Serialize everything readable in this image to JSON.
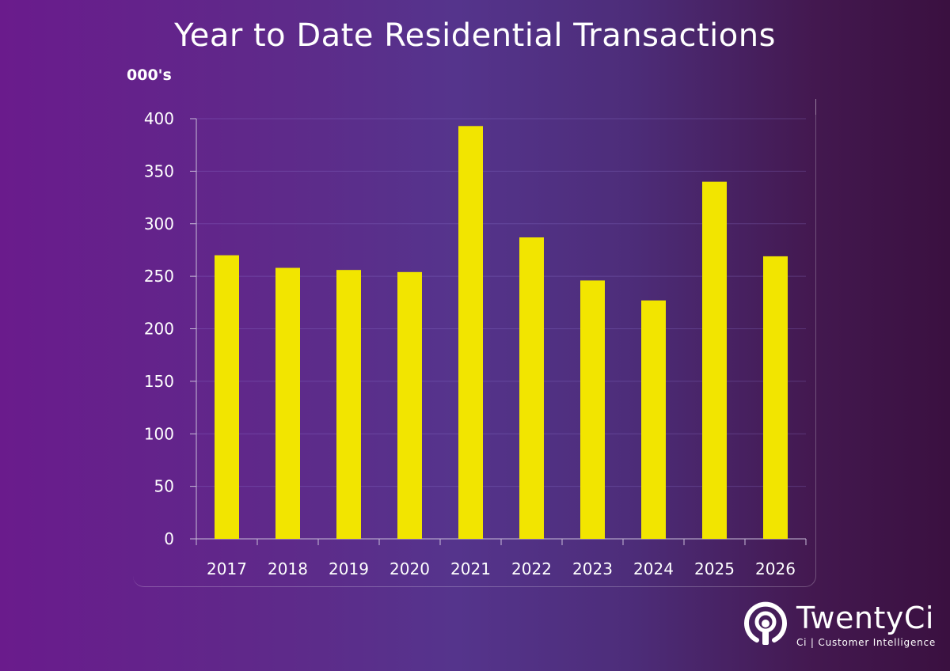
{
  "colors": {
    "bar": "#f2e500",
    "axis": "#c8bcd8",
    "grid": "rgba(150,130,220,0.28)",
    "text": "#ffffff"
  },
  "brand": {
    "name": "TwentyCi",
    "tagline": "Ci | Customer Intelligence",
    "icon": "pin-icon"
  },
  "chart_data": {
    "type": "bar",
    "title": "Year to Date Residential Transactions",
    "ylabel": "000's",
    "xlabel": "",
    "categories": [
      "2017",
      "2018",
      "2019",
      "2020",
      "2021",
      "2022",
      "2023",
      "2024",
      "2025",
      "2026"
    ],
    "values": [
      270,
      258,
      256,
      254,
      393,
      287,
      246,
      227,
      340,
      269
    ],
    "ylim": [
      0,
      400
    ],
    "yticks": [
      0,
      50,
      100,
      150,
      200,
      250,
      300,
      350,
      400
    ],
    "grid": true,
    "legend": "none"
  }
}
